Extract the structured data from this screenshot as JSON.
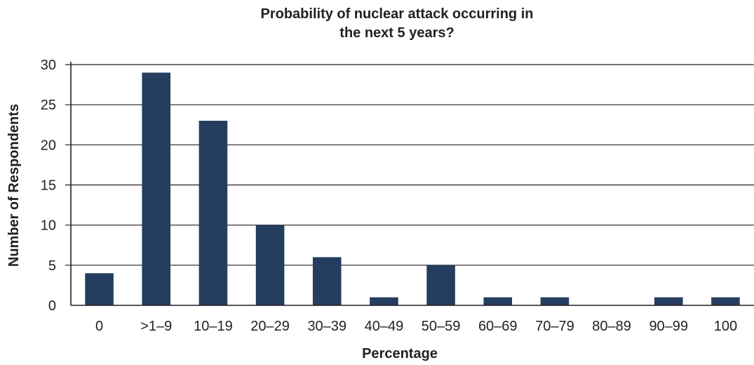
{
  "chart_data": {
    "type": "bar",
    "title_line1": "Probability of nuclear attack occurring in",
    "title_line2": "the next 5 years?",
    "xlabel": "Percentage",
    "ylabel": "Number of Respondents",
    "categories": [
      "0",
      ">1–9",
      "10–19",
      "20–29",
      "30–39",
      "40–49",
      "50–59",
      "60–69",
      "70–79",
      "80–89",
      "90–99",
      "100"
    ],
    "values": [
      4,
      29,
      23,
      10,
      6,
      1,
      5,
      1,
      1,
      0,
      1,
      1
    ],
    "ylim": [
      0,
      30
    ],
    "yticks": [
      0,
      5,
      10,
      15,
      20,
      25,
      30
    ],
    "grid": true,
    "bar_color": "#253d5e"
  }
}
